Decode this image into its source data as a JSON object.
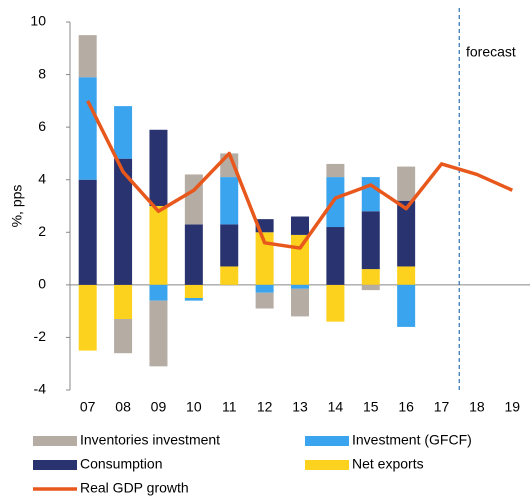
{
  "chart_data": {
    "type": "stacked-bar-line",
    "y_label": "%, pps",
    "annotation": "forecast",
    "categories": [
      "07",
      "08",
      "09",
      "10",
      "11",
      "12",
      "13",
      "14",
      "15",
      "16",
      "17",
      "18",
      "19"
    ],
    "series": [
      {
        "name": "Inventories investment",
        "color": "#b5aca4",
        "type": "bar",
        "values": [
          1.6,
          -1.3,
          -2.5,
          1.9,
          0.9,
          -0.6,
          -1.05,
          0.5,
          -0.2,
          1.3,
          null,
          null,
          null
        ]
      },
      {
        "name": "Investment (GFCF)",
        "color": "#3ba4ee",
        "type": "bar",
        "values": [
          3.9,
          2.0,
          -0.6,
          -0.1,
          1.8,
          -0.3,
          -0.15,
          1.9,
          1.3,
          -1.6,
          null,
          null,
          null
        ]
      },
      {
        "name": "Consumption",
        "color": "#28336f",
        "type": "bar",
        "values": [
          4.0,
          4.8,
          2.9,
          2.3,
          1.6,
          0.5,
          0.7,
          2.2,
          2.2,
          2.5,
          null,
          null,
          null
        ]
      },
      {
        "name": "Net exports",
        "color": "#fdd21e",
        "type": "bar",
        "values": [
          -2.5,
          -1.3,
          3.0,
          -0.5,
          0.7,
          2.0,
          1.9,
          -1.4,
          0.6,
          0.7,
          null,
          null,
          null
        ]
      },
      {
        "name": "Real GDP growth",
        "color": "#e8581c",
        "type": "line",
        "values": [
          7.0,
          4.3,
          2.8,
          3.6,
          5.0,
          1.6,
          1.4,
          3.3,
          3.8,
          2.9,
          4.6,
          4.2,
          3.6
        ]
      }
    ],
    "ylim": [
      -4,
      10
    ],
    "yticks": [
      -4,
      -2,
      0,
      2,
      4,
      6,
      8,
      10
    ]
  }
}
